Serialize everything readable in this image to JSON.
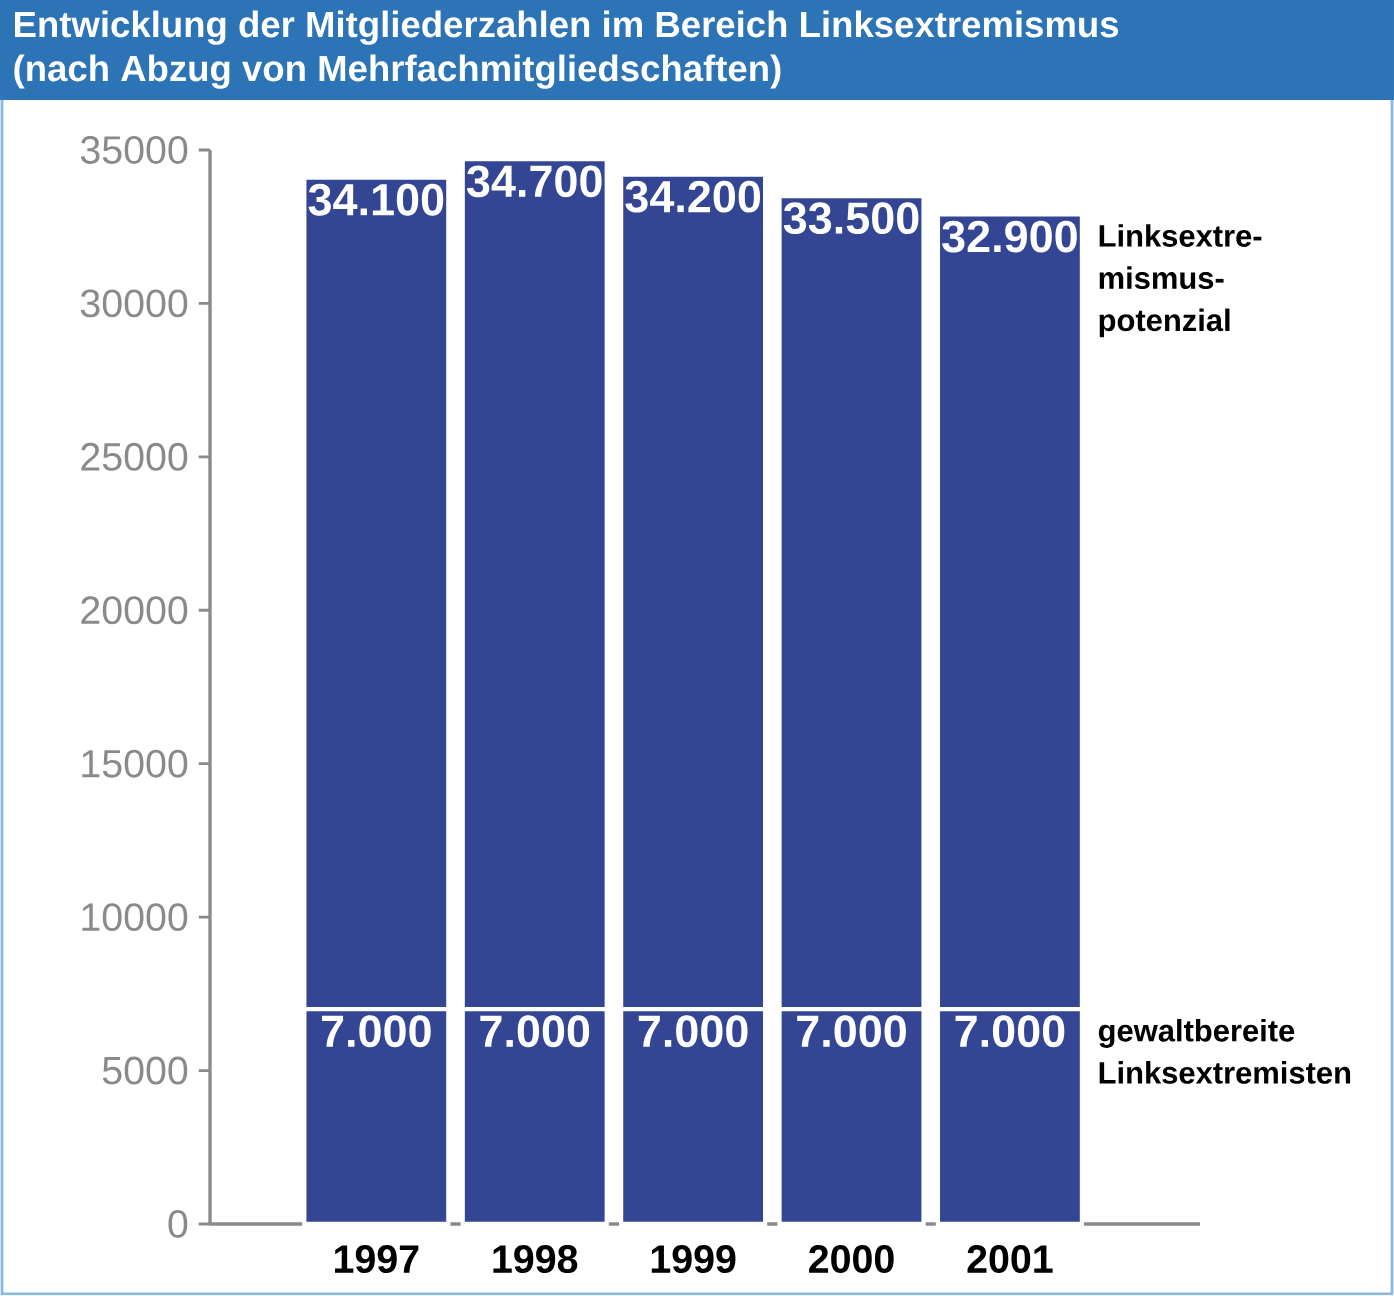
{
  "chart_data": {
    "type": "bar",
    "title": "Entwicklung der Mitgliederzahlen im Bereich Linksextremismus",
    "subtitle": "(nach Abzug von Mehrfachmitgliedschaften)",
    "categories": [
      "1997",
      "1998",
      "1999",
      "2000",
      "2001"
    ],
    "stacked": true,
    "series": [
      {
        "name": "gewaltbereite Linksextremisten",
        "color": "#334593",
        "values": [
          7000,
          7000,
          7000,
          7000,
          7000
        ],
        "value_labels": [
          "7.000",
          "7.000",
          "7.000",
          "7.000",
          "7.000"
        ]
      },
      {
        "name": "Linksextre- mismus- potenzial",
        "color": "#334593",
        "values": [
          27100,
          27700,
          27200,
          26500,
          25900
        ]
      }
    ],
    "totals": [
      "34.100",
      "34.700",
      "34.200",
      "33.500",
      "32.900"
    ],
    "ylim": [
      0,
      35000
    ],
    "yticks": [
      0,
      5000,
      10000,
      15000,
      20000,
      25000,
      30000,
      35000
    ]
  }
}
